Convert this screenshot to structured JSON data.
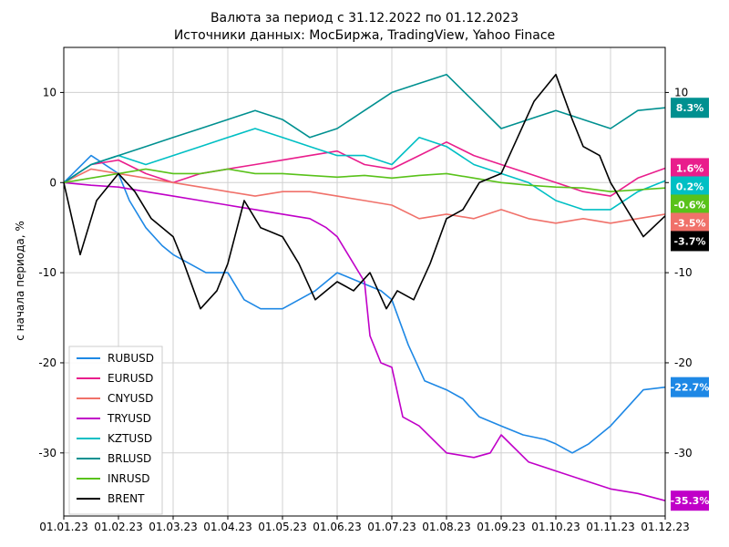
{
  "chart_data": {
    "type": "line",
    "title": "Валюта за период с 31.12.2022 по 01.12.2023",
    "subtitle": "Источники данных: МосБиржа, TradingView, Yahoo Finace",
    "xlabel": "",
    "ylabel": "с начала периода, %",
    "ylim": [
      -37,
      15
    ],
    "yticks": [
      10,
      0,
      -10,
      -20,
      -30
    ],
    "xlim": [
      0,
      11
    ],
    "x_tick_labels": [
      "01.01.23",
      "01.02.23",
      "01.03.23",
      "01.04.23",
      "01.05.23",
      "01.06.23",
      "01.07.23",
      "01.08.23",
      "01.09.23",
      "01.10.23",
      "01.11.23",
      "01.12.23"
    ],
    "grid": true,
    "legend_position": "bottom-left",
    "series": [
      {
        "name": "RUBUSD",
        "color": "#1e88e5",
        "end_label": "-22.7%",
        "x": [
          0,
          0.5,
          1,
          1.2,
          1.5,
          1.8,
          2,
          2.3,
          2.6,
          3,
          3.3,
          3.6,
          4,
          4.3,
          4.6,
          5,
          5.4,
          5.8,
          6,
          6.3,
          6.6,
          7,
          7.3,
          7.6,
          8,
          8.4,
          8.8,
          9,
          9.3,
          9.6,
          10,
          10.3,
          10.6,
          11
        ],
        "y": [
          0,
          3,
          1,
          -2,
          -5,
          -7,
          -8,
          -9,
          -10,
          -10,
          -13,
          -14,
          -14,
          -13,
          -12,
          -10,
          -11,
          -12,
          -13,
          -18,
          -22,
          -23,
          -24,
          -26,
          -27,
          -28,
          -28.5,
          -29,
          -30,
          -29,
          -27,
          -25,
          -23,
          -22.7
        ]
      },
      {
        "name": "EURUSD",
        "color": "#e91e8c",
        "end_label": "1.6%",
        "x": [
          0,
          0.5,
          1,
          1.5,
          2,
          2.5,
          3,
          3.5,
          4,
          4.5,
          5,
          5.5,
          6,
          6.5,
          7,
          7.5,
          8,
          8.5,
          9,
          9.5,
          10,
          10.5,
          11
        ],
        "y": [
          0,
          2,
          2.5,
          1,
          0,
          1,
          1.5,
          2,
          2.5,
          3,
          3.5,
          2,
          1.5,
          3,
          4.5,
          3,
          2,
          1,
          0,
          -1,
          -1.5,
          0.5,
          1.6
        ]
      },
      {
        "name": "CNYUSD",
        "color": "#f0716a",
        "end_label": "-3.5%",
        "x": [
          0,
          0.5,
          1,
          1.5,
          2,
          2.5,
          3,
          3.5,
          4,
          4.5,
          5,
          5.5,
          6,
          6.5,
          7,
          7.5,
          8,
          8.5,
          9,
          9.5,
          10,
          10.5,
          11
        ],
        "y": [
          0,
          1.5,
          1,
          0.5,
          0,
          -0.5,
          -1,
          -1.5,
          -1,
          -1,
          -1.5,
          -2,
          -2.5,
          -4,
          -3.5,
          -4,
          -3,
          -4,
          -4.5,
          -4,
          -4.5,
          -4,
          -3.5
        ]
      },
      {
        "name": "TRYUSD",
        "color": "#c000c8",
        "end_label": "-35.3%",
        "x": [
          0,
          0.5,
          1,
          1.5,
          2,
          2.5,
          3,
          3.5,
          4,
          4.5,
          4.8,
          5,
          5.2,
          5.5,
          5.6,
          5.8,
          6,
          6.2,
          6.5,
          7,
          7.5,
          7.8,
          8,
          8.5,
          9,
          9.5,
          10,
          10.5,
          11
        ],
        "y": [
          0,
          -0.3,
          -0.5,
          -1,
          -1.5,
          -2,
          -2.5,
          -3,
          -3.5,
          -4,
          -5,
          -6,
          -8,
          -11,
          -17,
          -20,
          -20.5,
          -26,
          -27,
          -30,
          -30.5,
          -30,
          -28,
          -31,
          -32,
          -33,
          -34,
          -34.5,
          -35.3
        ]
      },
      {
        "name": "KZTUSD",
        "color": "#00bfc4",
        "end_label": "0.2%",
        "x": [
          0,
          0.5,
          1,
          1.5,
          2,
          2.5,
          3,
          3.5,
          4,
          4.5,
          5,
          5.5,
          6,
          6.5,
          7,
          7.5,
          8,
          8.5,
          9,
          9.5,
          10,
          10.5,
          11
        ],
        "y": [
          0,
          2,
          3,
          2,
          3,
          4,
          5,
          6,
          5,
          4,
          3,
          3,
          2,
          5,
          4,
          2,
          1,
          0,
          -2,
          -3,
          -3,
          -1,
          0.2
        ]
      },
      {
        "name": "BRLUSD",
        "color": "#009090",
        "end_label": "8.3%",
        "x": [
          0,
          0.5,
          1,
          1.5,
          2,
          2.5,
          3,
          3.5,
          4,
          4.5,
          5,
          5.5,
          6,
          6.5,
          7,
          7.5,
          8,
          8.5,
          9,
          9.5,
          10,
          10.5,
          11
        ],
        "y": [
          0,
          2,
          3,
          4,
          5,
          6,
          7,
          8,
          7,
          5,
          6,
          8,
          10,
          11,
          12,
          9,
          6,
          7,
          8,
          7,
          6,
          8,
          8.3
        ]
      },
      {
        "name": "INRUSD",
        "color": "#59c21a",
        "end_label": "-0.6%",
        "x": [
          0,
          0.5,
          1,
          1.5,
          2,
          2.5,
          3,
          3.5,
          4,
          4.5,
          5,
          5.5,
          6,
          6.5,
          7,
          7.5,
          8,
          8.5,
          9,
          9.5,
          10,
          10.5,
          11
        ],
        "y": [
          0,
          0.5,
          1,
          1.5,
          1,
          1,
          1.5,
          1,
          1,
          0.8,
          0.6,
          0.8,
          0.5,
          0.8,
          1,
          0.5,
          0,
          -0.3,
          -0.5,
          -0.6,
          -1,
          -0.8,
          -0.6
        ]
      },
      {
        "name": "BRENT",
        "color": "#000000",
        "end_label": "-3.7%",
        "x": [
          0,
          0.3,
          0.6,
          1,
          1.3,
          1.6,
          2,
          2.2,
          2.5,
          2.8,
          3,
          3.3,
          3.6,
          4,
          4.3,
          4.6,
          5,
          5.3,
          5.6,
          5.9,
          6.1,
          6.4,
          6.7,
          7,
          7.3,
          7.6,
          8,
          8.3,
          8.6,
          9,
          9.3,
          9.5,
          9.8,
          10,
          10.3,
          10.6,
          11
        ],
        "y": [
          0,
          -8,
          -2,
          1,
          -1,
          -4,
          -6,
          -9,
          -14,
          -12,
          -9,
          -2,
          -5,
          -6,
          -9,
          -13,
          -11,
          -12,
          -10,
          -14,
          -12,
          -13,
          -9,
          -4,
          -3,
          0,
          1,
          5,
          9,
          12,
          7,
          4,
          3,
          0,
          -3,
          -6,
          -3.7
        ]
      }
    ]
  }
}
